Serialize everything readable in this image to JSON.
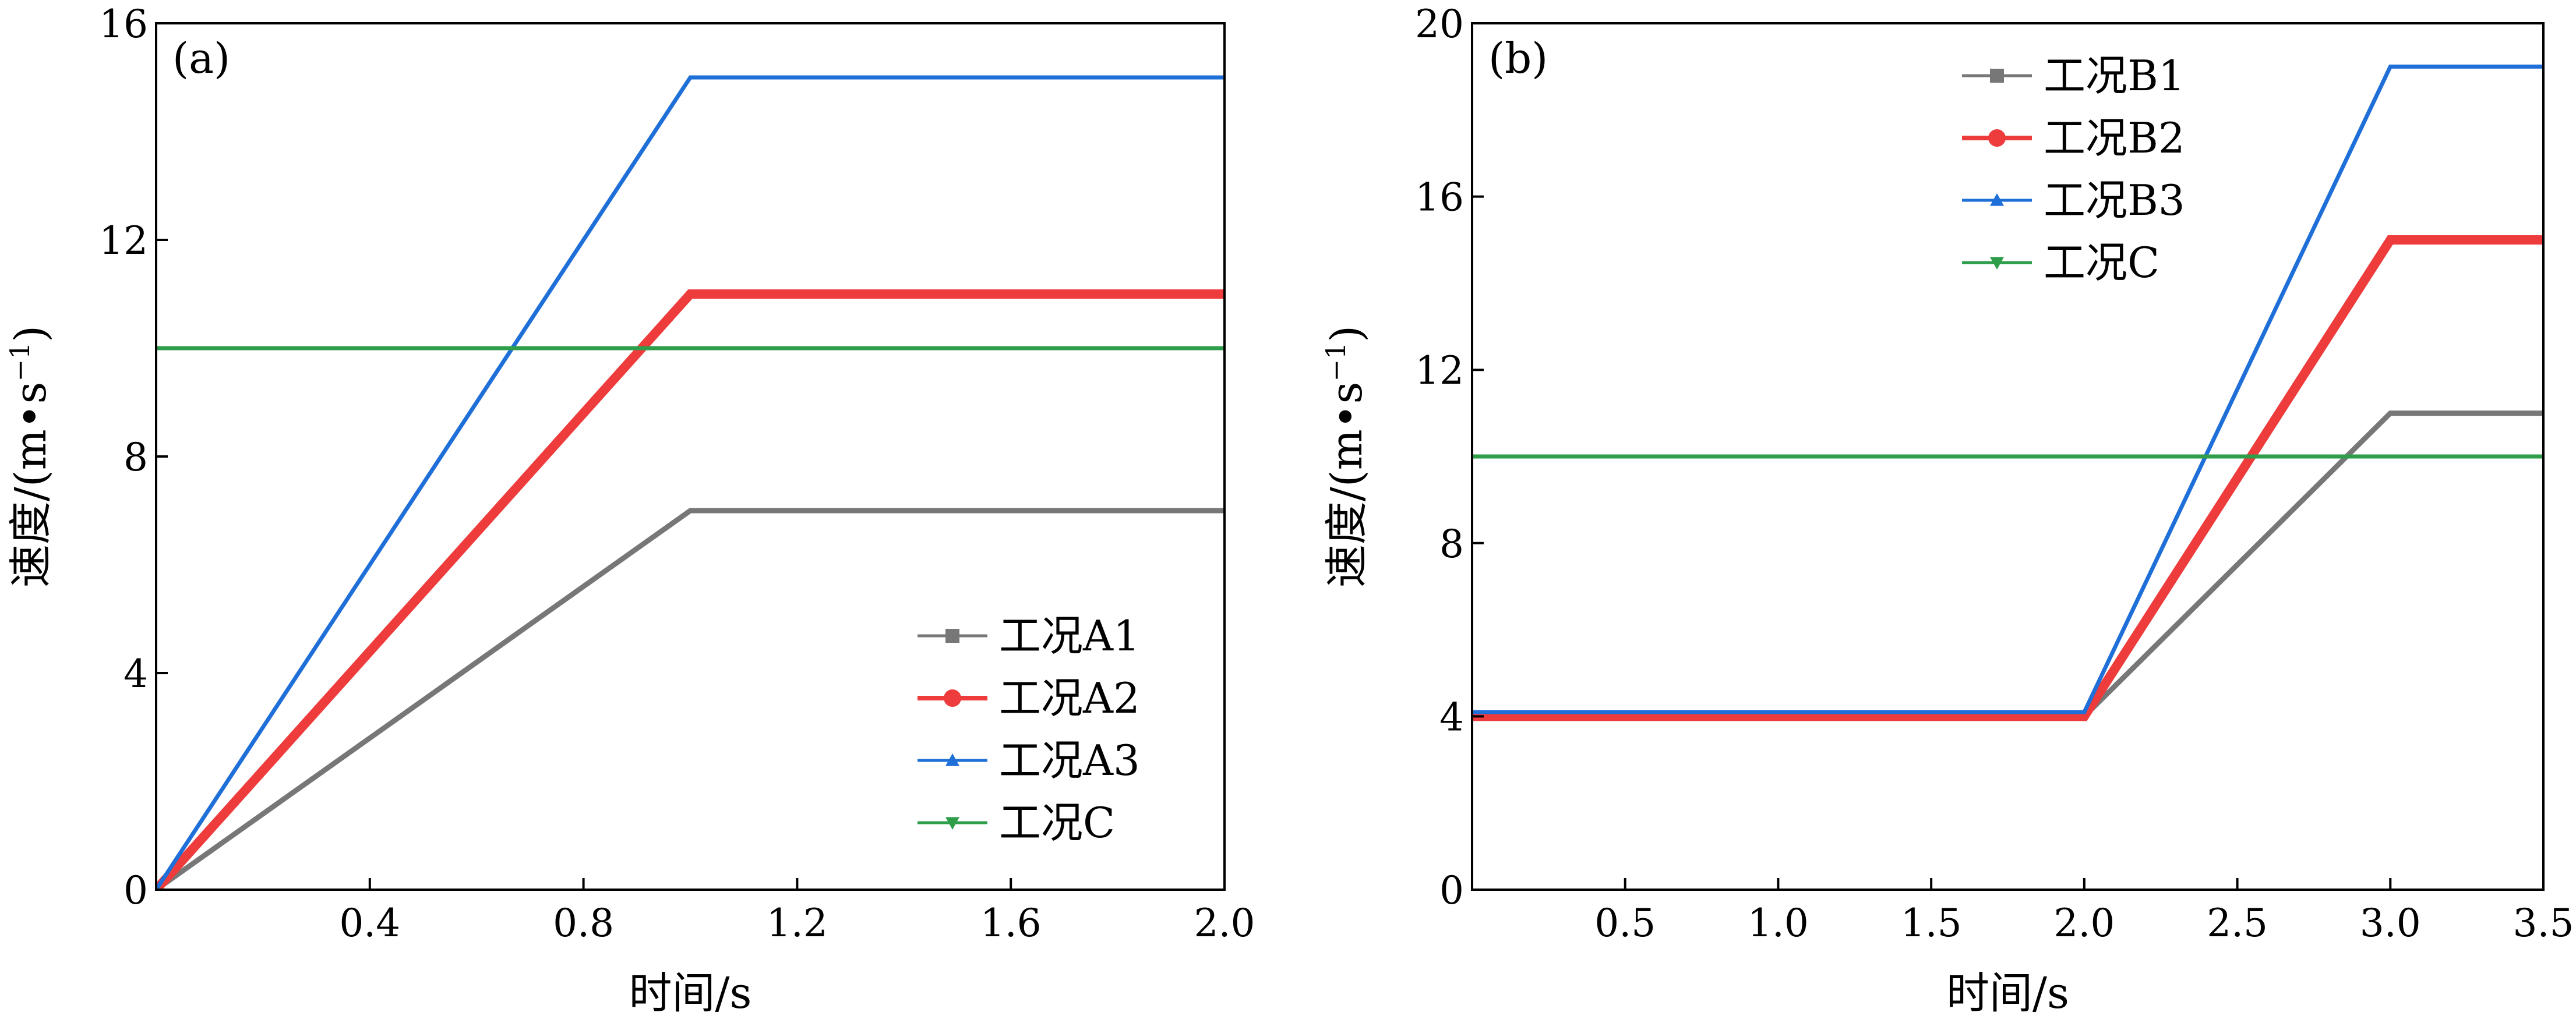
{
  "chart_data": [
    {
      "type": "line",
      "panel_label": "(a)",
      "xlabel": "时间/s",
      "ylabel": "速度/(m•s",
      "ylabel_sup": "−1",
      "ylabel_close": ")",
      "xlim": [
        0,
        2.0
      ],
      "ylim": [
        0,
        16
      ],
      "xticks": [
        0.4,
        0.8,
        1.2,
        1.6,
        2.0
      ],
      "xtick_labels": [
        "0.4",
        "0.8",
        "1.2",
        "1.6",
        "2.0"
      ],
      "yticks": [
        0,
        4,
        8,
        12,
        16
      ],
      "ytick_labels": [
        "0",
        "4",
        "8",
        "12",
        "16"
      ],
      "legend_position": "bottom-right",
      "grid": false,
      "series": [
        {
          "name": "工况A1",
          "color": "#777777",
          "marker": "square",
          "points": [
            [
              0,
              0
            ],
            [
              1.0,
              7
            ],
            [
              2.0,
              7
            ]
          ]
        },
        {
          "name": "工况A2",
          "color": "#ee3b3b",
          "marker": "circle",
          "points": [
            [
              0,
              0
            ],
            [
              1.0,
              11
            ],
            [
              2.0,
              11
            ]
          ]
        },
        {
          "name": "工况A3",
          "color": "#1f6fd8",
          "marker": "triangle-up",
          "points": [
            [
              0,
              0
            ],
            [
              1.0,
              15
            ],
            [
              2.0,
              15
            ]
          ]
        },
        {
          "name": "工况C",
          "color": "#2e9e4a",
          "marker": "triangle-down",
          "points": [
            [
              0,
              10
            ],
            [
              2.0,
              10
            ]
          ]
        }
      ]
    },
    {
      "type": "line",
      "panel_label": "(b)",
      "xlabel": "时间/s",
      "ylabel": "速度/(m•s",
      "ylabel_sup": "−1",
      "ylabel_close": ")",
      "xlim": [
        0,
        3.5
      ],
      "ylim": [
        0,
        20
      ],
      "xticks": [
        0.5,
        1.0,
        1.5,
        2.0,
        2.5,
        3.0,
        3.5
      ],
      "xtick_labels": [
        "0.5",
        "1.0",
        "1.5",
        "2.0",
        "2.5",
        "3.0",
        "3.5"
      ],
      "yticks": [
        0,
        4,
        8,
        12,
        16,
        20
      ],
      "ytick_labels": [
        "0",
        "4",
        "8",
        "12",
        "16",
        "20"
      ],
      "legend_position": "top-right",
      "grid": false,
      "series": [
        {
          "name": "工况B1",
          "color": "#777777",
          "marker": "square",
          "points": [
            [
              0,
              4
            ],
            [
              2.0,
              4
            ],
            [
              3.0,
              11
            ],
            [
              3.5,
              11
            ]
          ]
        },
        {
          "name": "工况B2",
          "color": "#ee3b3b",
          "marker": "circle",
          "points": [
            [
              0,
              4
            ],
            [
              2.0,
              4
            ],
            [
              3.0,
              15
            ],
            [
              3.5,
              15
            ]
          ]
        },
        {
          "name": "工况B3",
          "color": "#1f6fd8",
          "marker": "triangle-up",
          "points": [
            [
              0,
              4.1
            ],
            [
              2.0,
              4.1
            ],
            [
              3.0,
              19
            ],
            [
              3.5,
              19
            ]
          ]
        },
        {
          "name": "工况C",
          "color": "#2e9e4a",
          "marker": "triangle-down",
          "points": [
            [
              0,
              10
            ],
            [
              3.5,
              10
            ]
          ]
        }
      ]
    }
  ]
}
